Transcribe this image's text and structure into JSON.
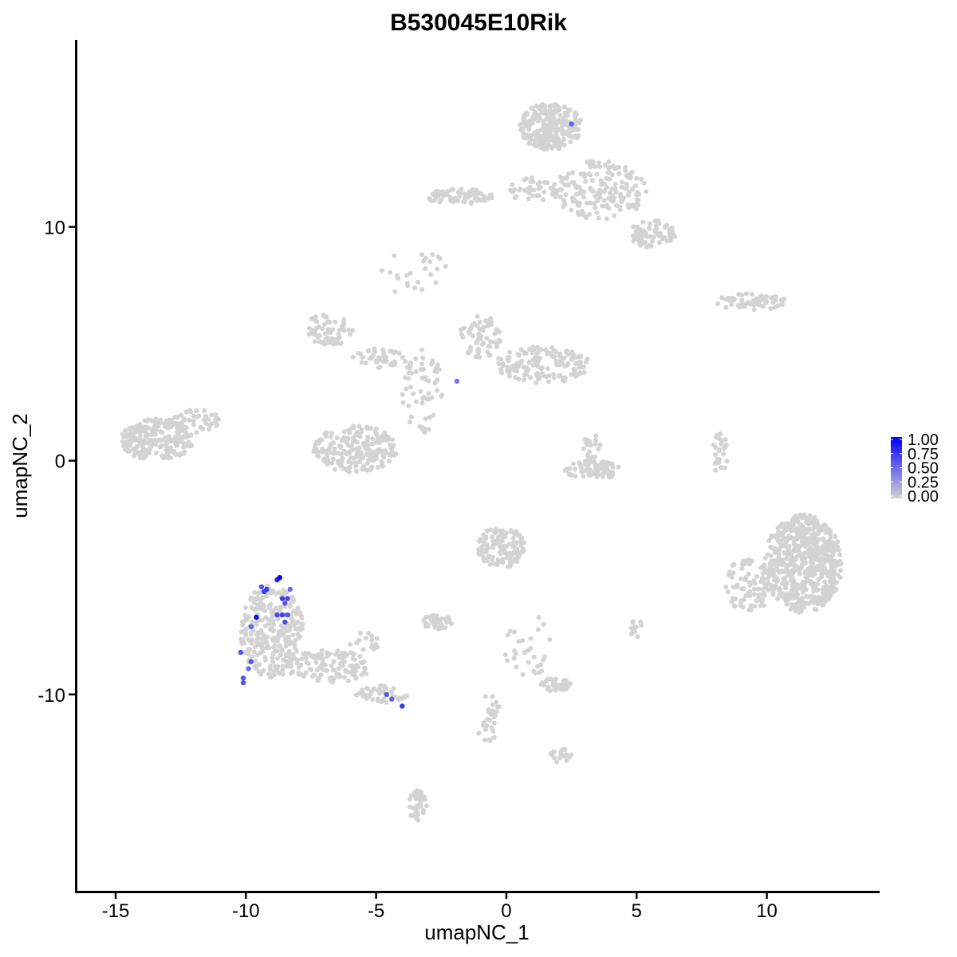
{
  "chart_data": {
    "type": "scatter",
    "title": "B530045E10Rik",
    "xlabel": "umapNC_1",
    "ylabel": "umapNC_2",
    "xlim": [
      -16.5,
      14.3
    ],
    "ylim": [
      -18.4,
      18.0
    ],
    "x_ticks": [
      {
        "value": -15,
        "label": "-15"
      },
      {
        "value": -10,
        "label": "-10"
      },
      {
        "value": -5,
        "label": "-5"
      },
      {
        "value": 0,
        "label": "0"
      },
      {
        "value": 5,
        "label": "5"
      },
      {
        "value": 10,
        "label": "10"
      }
    ],
    "y_ticks": [
      {
        "value": 10,
        "label": "10"
      },
      {
        "value": 0,
        "label": "0"
      },
      {
        "value": -10,
        "label": "-10"
      }
    ],
    "color_scale": {
      "low_color": "#d3d3d3",
      "high_color": "#0000ff",
      "min": 0.0,
      "max": 1.0,
      "ticks": [
        "1.00",
        "0.75",
        "0.50",
        "0.25",
        "0.00"
      ]
    },
    "grid": false,
    "legend_position": "right",
    "clusters": [
      {
        "cx": 1.7,
        "cy": 14.3,
        "rx": 1.2,
        "ry": 1.0,
        "n": 260
      },
      {
        "cx": 3.6,
        "cy": 11.6,
        "rx": 1.8,
        "ry": 1.3,
        "n": 170
      },
      {
        "cx": 5.6,
        "cy": 9.7,
        "rx": 0.9,
        "ry": 0.6,
        "n": 70
      },
      {
        "cx": -1.8,
        "cy": 11.3,
        "rx": 1.3,
        "ry": 0.35,
        "n": 70
      },
      {
        "cx": 1.0,
        "cy": 11.6,
        "rx": 1.0,
        "ry": 0.5,
        "n": 40
      },
      {
        "cx": 9.4,
        "cy": 6.8,
        "rx": 1.4,
        "ry": 0.35,
        "n": 70
      },
      {
        "cx": -6.8,
        "cy": 5.6,
        "rx": 1.0,
        "ry": 0.7,
        "n": 70
      },
      {
        "cx": -4.9,
        "cy": 4.3,
        "rx": 1.1,
        "ry": 0.5,
        "n": 40
      },
      {
        "cx": -1.0,
        "cy": 5.3,
        "rx": 0.8,
        "ry": 0.9,
        "n": 60
      },
      {
        "cx": 1.4,
        "cy": 4.1,
        "rx": 1.8,
        "ry": 0.8,
        "n": 150
      },
      {
        "cx": -3.2,
        "cy": 3.0,
        "rx": 0.8,
        "ry": 1.8,
        "n": 60
      },
      {
        "cx": -5.8,
        "cy": 0.5,
        "rx": 1.6,
        "ry": 1.0,
        "n": 200
      },
      {
        "cx": -13.4,
        "cy": 0.9,
        "rx": 1.4,
        "ry": 0.9,
        "n": 230
      },
      {
        "cx": -11.9,
        "cy": 1.7,
        "rx": 0.9,
        "ry": 0.5,
        "n": 40
      },
      {
        "cx": 3.3,
        "cy": -0.4,
        "rx": 1.1,
        "ry": 0.4,
        "n": 70
      },
      {
        "cx": 3.3,
        "cy": 0.6,
        "rx": 0.4,
        "ry": 0.5,
        "n": 20
      },
      {
        "cx": 8.2,
        "cy": 0.3,
        "rx": 0.3,
        "ry": 0.9,
        "n": 25
      },
      {
        "cx": 11.4,
        "cy": -4.4,
        "rx": 1.5,
        "ry": 2.1,
        "n": 600
      },
      {
        "cx": 9.3,
        "cy": -5.3,
        "rx": 0.9,
        "ry": 1.2,
        "n": 80
      },
      {
        "cx": -0.2,
        "cy": -3.7,
        "rx": 0.9,
        "ry": 0.9,
        "n": 130
      },
      {
        "cx": -2.6,
        "cy": -6.9,
        "rx": 0.6,
        "ry": 0.35,
        "n": 40
      },
      {
        "cx": -9.0,
        "cy": -7.3,
        "rx": 1.2,
        "ry": 2.0,
        "n": 280
      },
      {
        "cx": -6.8,
        "cy": -8.8,
        "rx": 1.6,
        "ry": 0.7,
        "n": 120
      },
      {
        "cx": -4.8,
        "cy": -10.0,
        "rx": 1.0,
        "ry": 0.4,
        "n": 40
      },
      {
        "cx": 1.9,
        "cy": -9.6,
        "rx": 0.6,
        "ry": 0.3,
        "n": 40
      },
      {
        "cx": -0.7,
        "cy": -11.0,
        "rx": 0.5,
        "ry": 1.0,
        "n": 30
      },
      {
        "cx": 2.0,
        "cy": -12.6,
        "rx": 0.5,
        "ry": 0.3,
        "n": 20
      },
      {
        "cx": -3.4,
        "cy": -14.8,
        "rx": 0.35,
        "ry": 0.7,
        "n": 40
      },
      {
        "cx": 0.8,
        "cy": -7.9,
        "rx": 0.9,
        "ry": 1.4,
        "n": 30
      },
      {
        "cx": 5.0,
        "cy": -7.2,
        "rx": 0.25,
        "ry": 0.4,
        "n": 12
      },
      {
        "cx": -3.5,
        "cy": 8.0,
        "rx": 1.3,
        "ry": 1.0,
        "n": 25
      },
      {
        "cx": -5.3,
        "cy": -7.8,
        "rx": 0.8,
        "ry": 0.5,
        "n": 15
      }
    ],
    "expressed_points": [
      {
        "x": 2.5,
        "y": 14.4,
        "v": 0.55
      },
      {
        "x": -1.9,
        "y": 3.4,
        "v": 0.45
      },
      {
        "x": -8.7,
        "y": -5.0,
        "v": 1.0
      },
      {
        "x": -8.8,
        "y": -5.1,
        "v": 0.85
      },
      {
        "x": -9.2,
        "y": -5.5,
        "v": 0.7
      },
      {
        "x": -9.4,
        "y": -5.4,
        "v": 0.6
      },
      {
        "x": -9.3,
        "y": -5.6,
        "v": 0.75
      },
      {
        "x": -8.6,
        "y": -5.9,
        "v": 0.7
      },
      {
        "x": -8.4,
        "y": -5.9,
        "v": 0.65
      },
      {
        "x": -8.5,
        "y": -6.1,
        "v": 0.6
      },
      {
        "x": -8.3,
        "y": -5.5,
        "v": 0.5
      },
      {
        "x": -8.8,
        "y": -6.6,
        "v": 0.65
      },
      {
        "x": -8.6,
        "y": -6.6,
        "v": 0.7
      },
      {
        "x": -8.4,
        "y": -6.6,
        "v": 0.6
      },
      {
        "x": -8.5,
        "y": -6.9,
        "v": 0.65
      },
      {
        "x": -9.6,
        "y": -6.7,
        "v": 0.95
      },
      {
        "x": -9.8,
        "y": -7.1,
        "v": 0.5
      },
      {
        "x": -10.2,
        "y": -8.2,
        "v": 0.6
      },
      {
        "x": -9.8,
        "y": -8.6,
        "v": 0.6
      },
      {
        "x": -9.9,
        "y": -8.9,
        "v": 0.5
      },
      {
        "x": -10.1,
        "y": -9.3,
        "v": 0.6
      },
      {
        "x": -10.1,
        "y": -9.5,
        "v": 0.6
      },
      {
        "x": -4.6,
        "y": -10.0,
        "v": 0.6
      },
      {
        "x": -4.4,
        "y": -10.2,
        "v": 0.55
      },
      {
        "x": -4.0,
        "y": -10.5,
        "v": 0.75
      }
    ]
  }
}
